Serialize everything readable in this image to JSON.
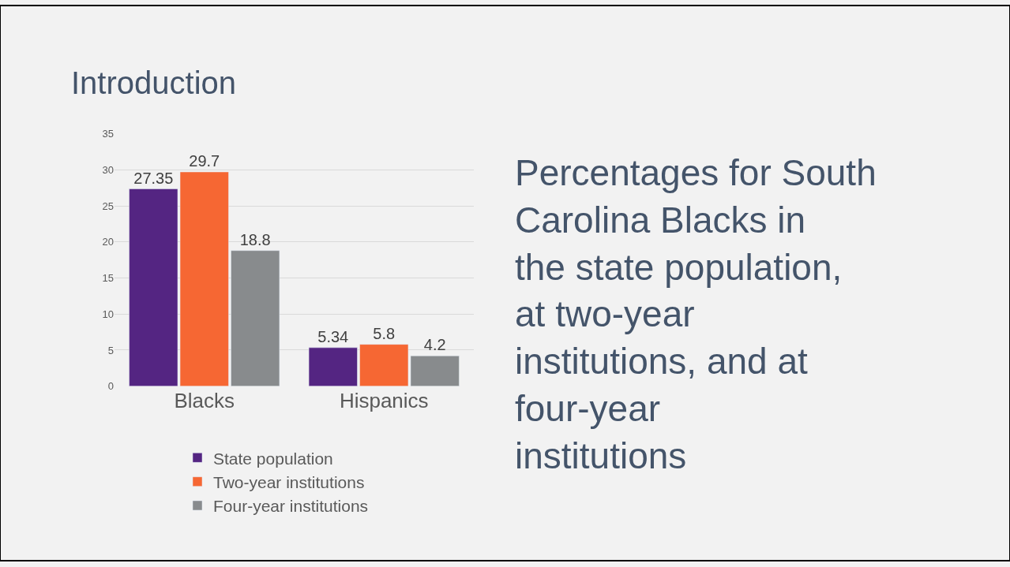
{
  "chart_data": {
    "type": "bar",
    "title": "Introduction",
    "categories": [
      "Blacks",
      "Hispanics"
    ],
    "series": [
      {
        "name": "State population",
        "color": "#542582",
        "values": [
          27.35,
          5.34
        ]
      },
      {
        "name": "Two-year institutions",
        "color": "#f66733",
        "values": [
          29.7,
          5.8
        ]
      },
      {
        "name": "Four-year institutions",
        "color": "#888b8d",
        "values": [
          18.8,
          4.2
        ]
      }
    ],
    "ylim": [
      0,
      35
    ],
    "yticks": [
      0,
      5,
      10,
      15,
      20,
      25,
      30,
      35
    ],
    "grid": "y",
    "legend": "bottom",
    "data_labels": true,
    "annotations": [
      "Percentages for South Carolina Blacks in the state population, at two-year institutions, and at four-year institutions"
    ]
  }
}
